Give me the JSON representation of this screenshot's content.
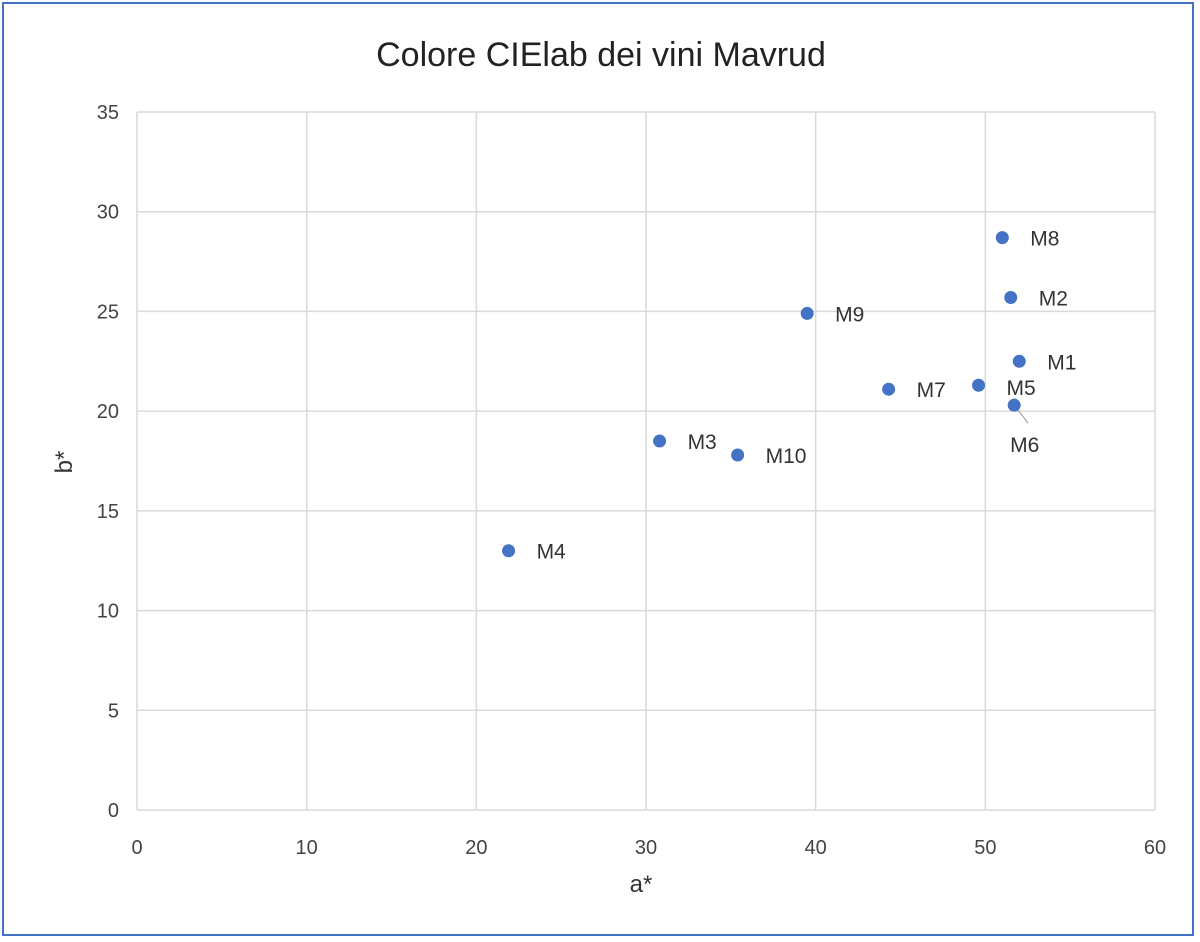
{
  "chart_data": {
    "type": "scatter",
    "title": "Colore CIElab dei vini Mavrud",
    "xlabel": "a*",
    "ylabel": "b*",
    "xlim": [
      0,
      60
    ],
    "ylim": [
      0,
      35
    ],
    "xticks": [
      "0",
      "10",
      "20",
      "30",
      "40",
      "50",
      "60"
    ],
    "yticks": [
      "0",
      "5",
      "10",
      "15",
      "20",
      "25",
      "30",
      "35"
    ],
    "grid": true,
    "marker_color": "#4472C4",
    "points": [
      {
        "label": "M1",
        "x": 52.0,
        "y": 22.5
      },
      {
        "label": "M2",
        "x": 51.5,
        "y": 25.7
      },
      {
        "label": "M3",
        "x": 30.8,
        "y": 18.5
      },
      {
        "label": "M4",
        "x": 21.9,
        "y": 13.0
      },
      {
        "label": "M5",
        "x": 49.6,
        "y": 21.3
      },
      {
        "label": "M6",
        "x": 51.7,
        "y": 20.3
      },
      {
        "label": "M7",
        "x": 44.3,
        "y": 21.1
      },
      {
        "label": "M8",
        "x": 51.0,
        "y": 28.7
      },
      {
        "label": "M9",
        "x": 39.5,
        "y": 24.9
      },
      {
        "label": "M10",
        "x": 35.4,
        "y": 17.8
      }
    ]
  }
}
